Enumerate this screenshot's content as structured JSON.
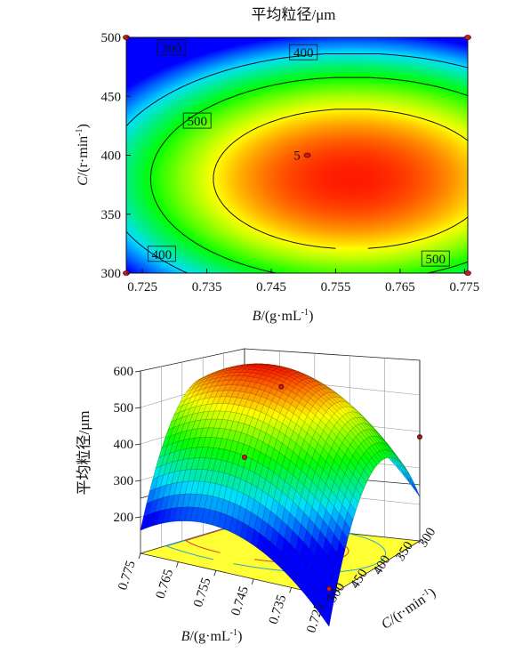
{
  "chart_data": [
    {
      "type": "contour",
      "title": "平均粒径/μm",
      "xlabel": "B/(g·mL-1)",
      "ylabel": "C/(r·min-1)",
      "xlim": [
        0.7225,
        0.7755
      ],
      "ylim": [
        300,
        500
      ],
      "x_ticks": [
        "0.725",
        "0.735",
        "0.745",
        "0.755",
        "0.765",
        "0.775"
      ],
      "y_ticks": [
        "300",
        "350",
        "400",
        "450",
        "500"
      ],
      "contour_levels": [
        300,
        400,
        500
      ],
      "contour_labels": [
        {
          "text": "300",
          "x": 0.7295,
          "y": 491
        },
        {
          "text": "400",
          "x": 0.75,
          "y": 487
        },
        {
          "text": "500",
          "x": 0.7335,
          "y": 429
        },
        {
          "text": "5",
          "x": 0.749,
          "y": 400
        },
        {
          "text": "400",
          "x": 0.728,
          "y": 316
        },
        {
          "text": "500",
          "x": 0.7705,
          "y": 312
        }
      ],
      "design_points": [
        {
          "x": 0.7225,
          "y": 500
        },
        {
          "x": 0.7755,
          "y": 500
        },
        {
          "x": 0.7225,
          "y": 300
        },
        {
          "x": 0.7755,
          "y": 300
        },
        {
          "x": 0.7506,
          "y": 400
        }
      ],
      "colormap": [
        "#0000ff",
        "#00e0ff",
        "#00ff00",
        "#ffff00",
        "#ff0000"
      ],
      "z_range": [
        200,
        600
      ]
    },
    {
      "type": "surface3d",
      "zlabel": "平均粒径/μm",
      "xlabel": "B/(g·mL-1)",
      "ylabel": "C/(r·min-1)",
      "x_ticks": [
        "0.775",
        "0.765",
        "0.755",
        "0.745",
        "0.735",
        "0.725"
      ],
      "y_ticks": [
        "500",
        "450",
        "400",
        "350",
        "300"
      ],
      "z_ticks": [
        "200",
        "300",
        "400",
        "500",
        "600"
      ],
      "zlim": [
        100,
        600
      ],
      "design_points": [
        {
          "x": 0.775,
          "y": 300,
          "z": 278
        },
        {
          "x": 0.725,
          "y": 300,
          "z": 385
        },
        {
          "x": 0.7506,
          "y": 400,
          "z": 555
        },
        {
          "x": 0.725,
          "y": 500,
          "z": 120
        }
      ],
      "colormap": [
        "#0000ff",
        "#00e0ff",
        "#00ff00",
        "#ffff00",
        "#ff0000"
      ]
    }
  ]
}
